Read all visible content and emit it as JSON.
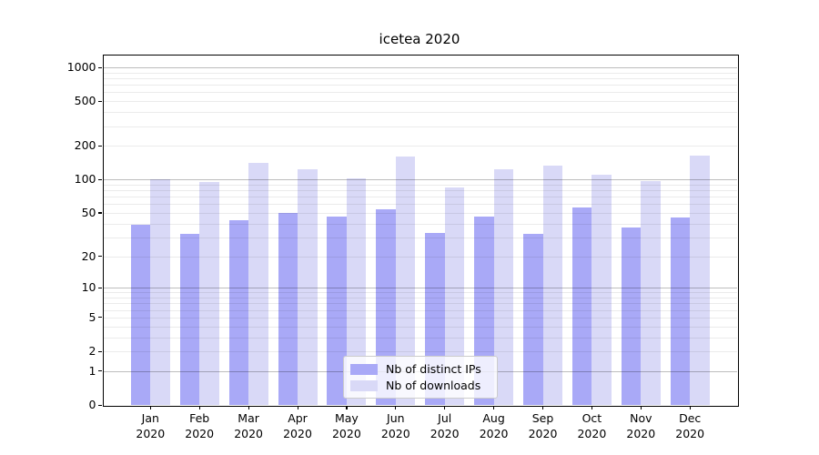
{
  "chart_data": {
    "type": "bar",
    "title": "icetea 2020",
    "yscale": "log1p",
    "grid": "both",
    "legend_position": "lower center",
    "categories": [
      "Jan",
      "Feb",
      "Mar",
      "Apr",
      "May",
      "Jun",
      "Jul",
      "Aug",
      "Sep",
      "Oct",
      "Nov",
      "Dec"
    ],
    "category_year": "2020",
    "series": [
      {
        "name": "Nb of distinct IPs",
        "slug": "distinct-ips",
        "color": "#a9a9f7",
        "values": [
          39,
          32,
          43,
          50,
          46,
          54,
          33,
          46,
          32,
          56,
          37,
          45
        ]
      },
      {
        "name": "Nb of downloads",
        "slug": "downloads",
        "color": "#d9d9f7",
        "values": [
          100,
          95,
          140,
          123,
          103,
          160,
          84,
          123,
          133,
          111,
          97,
          165
        ]
      }
    ],
    "yticks": [
      0,
      1,
      2,
      5,
      10,
      20,
      50,
      100,
      200,
      500,
      1000
    ],
    "major_grid_values": [
      1,
      10,
      100,
      1000
    ],
    "ylim": [
      0,
      1300
    ],
    "style": {
      "major_grid_color": "rgba(0,0,0,0.26)",
      "minor_grid_color": "rgba(0,0,0,0.08)",
      "axis_color": "#000000",
      "background": "#ffffff"
    }
  }
}
